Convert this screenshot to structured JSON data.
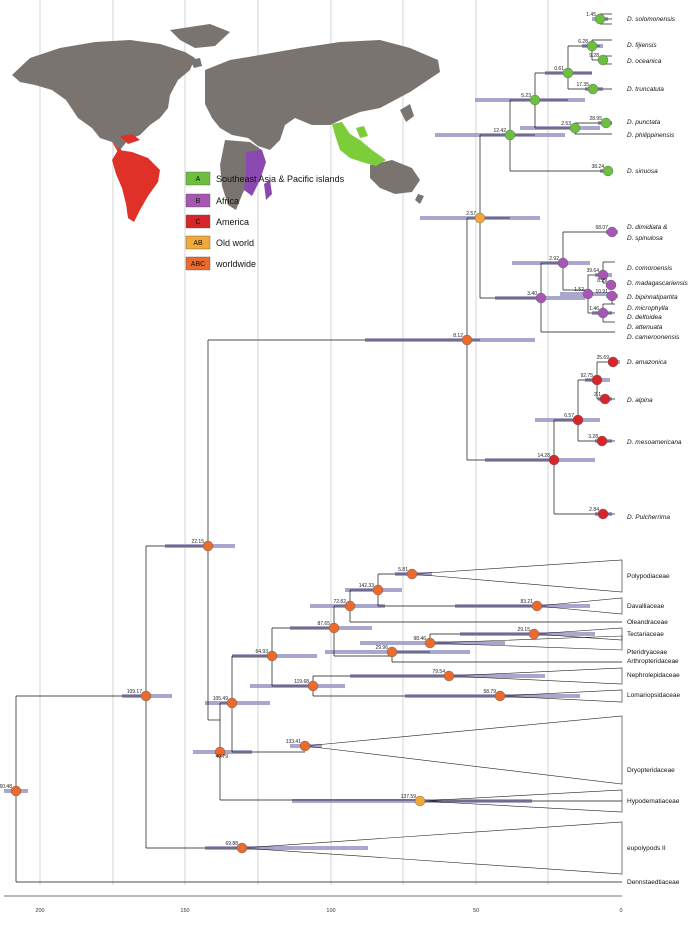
{
  "legend": [
    {
      "key": "A",
      "label": "Southeast Asia & Pacific islands",
      "color": "#6dbf3f"
    },
    {
      "key": "B",
      "label": "Africa",
      "color": "#a657b3"
    },
    {
      "key": "C",
      "label": "America",
      "color": "#d7262b"
    },
    {
      "key": "AB",
      "label": "Old world",
      "color": "#f2a93b"
    },
    {
      "key": "ABC",
      "label": "worldwide",
      "color": "#eb6a2e"
    }
  ],
  "axis_ticks": [
    "200",
    "150",
    "100",
    "50",
    "0"
  ],
  "taxa": [
    "D. solomonensis",
    "D. fijiensis",
    "D. oceanica",
    "D. truncatula",
    "D. punctata",
    "D. philippinensis",
    "D. sinuosa",
    "D. dimidiata &",
    "D. spinulosa",
    "D. comoroensis",
    "D. madagascariensis",
    "D. bipinnatipartita",
    "D. microphylla",
    "D. deltoidea",
    "D. attenuata",
    "D. cameroonensis",
    "D. amazonica",
    "D. alpina",
    "D. mesoamericana",
    "D. Pulcherrima",
    "Polypodiaceae",
    "Davalliaceae",
    "Oleandraceae",
    "Tectariaceae",
    "Pteridryaceae",
    "Arthropteridaceae",
    "Nephrolepidaceae",
    "Lomariopsidaceae",
    "Dryopteridaceae",
    "Hypodematiaceae",
    "eupolypods II",
    "Dennstaedtiaceae"
  ],
  "node_ages": [
    "1.45",
    "6.28",
    "9.28",
    "0.61",
    "17.35",
    "5.23",
    "28.95",
    "2.53",
    "12.42",
    "38.24",
    "2.57",
    "68.07",
    "2.92",
    "39.64",
    "8.29",
    "1.52",
    "10.91",
    "1.46",
    "3.40",
    "8.12",
    "25.69",
    "92.75",
    "2.1",
    "6.57",
    "3.28",
    "14.28",
    "2.84",
    "22.15",
    "5.81",
    "142.33",
    "72.82",
    "83.21",
    "87.65",
    "29.15",
    "98.46",
    "29.96",
    "64.93",
    "79.54",
    "119.68",
    "58.79",
    "105.49",
    "40.79",
    "133.41",
    "137.59",
    "109.17",
    "69.88",
    "160.48",
    "139.37",
    "207.42"
  ]
}
